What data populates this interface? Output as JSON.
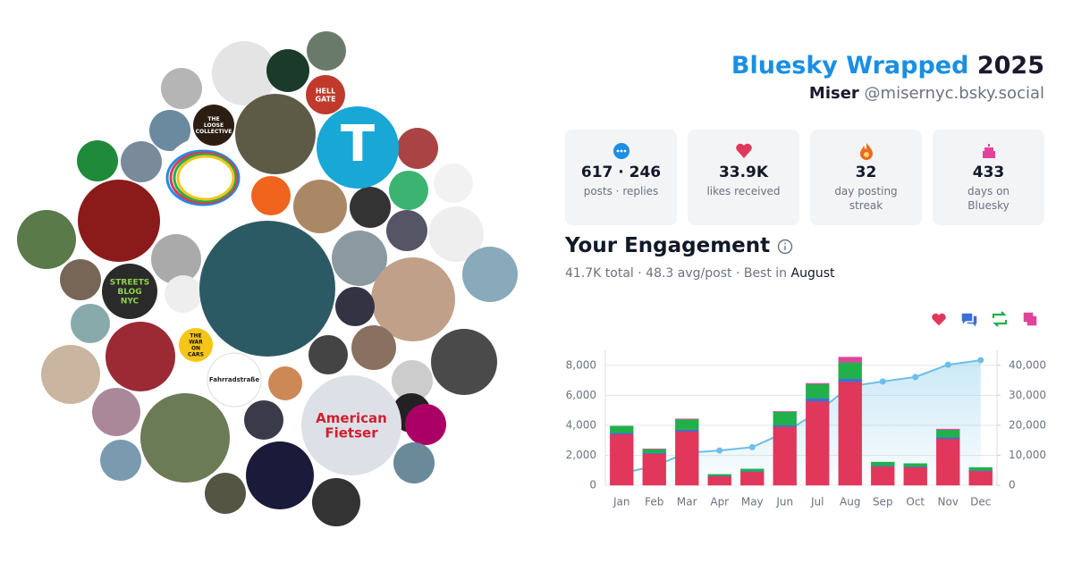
{
  "header": {
    "title": "Bluesky Wrapped",
    "year": "2025",
    "name": "Miser",
    "handle": "@misernyc.bsky.social"
  },
  "avatars": [
    {
      "label": "T"
    },
    {
      "label": "HELL GATE"
    },
    {
      "label": "THE LOOSE COLLECTIVE"
    },
    {
      "label": "STREETS BLOG NYC"
    },
    {
      "label": "THE WAR ON CARS"
    },
    {
      "label": "Fahrradstraße"
    },
    {
      "label": "American Fietser"
    }
  ],
  "stats": [
    {
      "value": "617 · 246",
      "label": "posts · replies"
    },
    {
      "value": "33.9K",
      "label": "likes received"
    },
    {
      "value": "32",
      "label": "day posting streak"
    },
    {
      "value": "433",
      "label": "days on Bluesky"
    }
  ],
  "engagement": {
    "title": "Your Engagement",
    "summary": "41.7K total · 48.3 avg/post · Best in",
    "best_month": "August"
  },
  "chart_data": {
    "type": "stacked-bar-line",
    "categories": [
      "Jan",
      "Feb",
      "Mar",
      "Apr",
      "May",
      "Jun",
      "Jul",
      "Aug",
      "Sep",
      "Oct",
      "Nov",
      "Dec"
    ],
    "series": [
      {
        "color": "#e0375a",
        "values": [
          3400,
          2100,
          3600,
          600,
          900,
          3900,
          5600,
          6900,
          1250,
          1200,
          3100,
          950
        ]
      },
      {
        "color": "#3b6fd8",
        "values": [
          100,
          60,
          100,
          30,
          40,
          100,
          200,
          200,
          50,
          50,
          100,
          40
        ]
      },
      {
        "color": "#22b04b",
        "values": [
          450,
          250,
          700,
          100,
          150,
          900,
          950,
          1100,
          250,
          200,
          500,
          200
        ]
      },
      {
        "color": "#e0449a",
        "values": [
          0,
          20,
          30,
          0,
          0,
          30,
          50,
          350,
          0,
          0,
          50,
          0
        ]
      },
      {
        "color": "#6bbfe8",
        "axis": "y2",
        "values": [
          3950,
          6400,
          10800,
          11600,
          12700,
          17600,
          24400,
          33000,
          34600,
          36100,
          40200,
          41700
        ]
      }
    ],
    "ylim": [
      0,
      9000
    ],
    "yticks": [
      0,
      {
        "value": 2000,
        "label": "2,000"
      },
      {
        "value": 4000,
        "label": "4,000"
      },
      {
        "value": 6000,
        "label": "6,000"
      },
      {
        "value": 8000,
        "label": "8,000"
      }
    ],
    "y2lim": [
      0,
      45000
    ],
    "y2ticks": [
      0,
      {
        "value": 10000,
        "label": "10,000"
      },
      {
        "value": 20000,
        "label": "20,000"
      },
      {
        "value": 30000,
        "label": "30,000"
      },
      {
        "value": 40000,
        "label": "40,000"
      }
    ],
    "grid": true
  }
}
